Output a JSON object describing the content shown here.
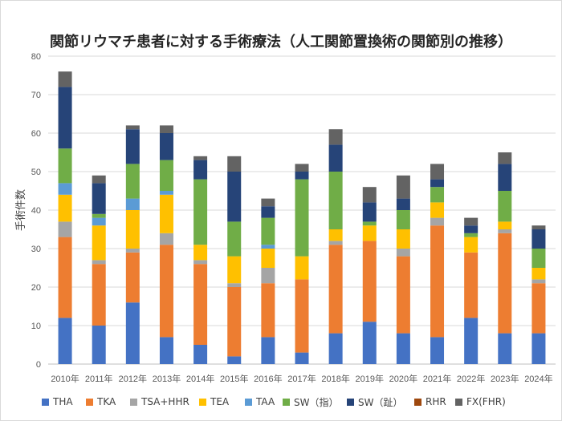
{
  "chart_data": {
    "type": "bar",
    "stacked": true,
    "title": "関節リウマチ患者に対する手術療法（人工関節置換術の関節別の推移）",
    "ylabel": "手術件数",
    "xlabel": "",
    "ylim": [
      0,
      80
    ],
    "yticks": [
      "0",
      "10",
      "20",
      "30",
      "40",
      "50",
      "60",
      "70",
      "80"
    ],
    "grid": true,
    "legend_position": "bottom",
    "categories": [
      "2010年",
      "2011年",
      "2012年",
      "2013年",
      "2014年",
      "2015年",
      "2016年",
      "2017年",
      "2018年",
      "2019年",
      "2020年",
      "2021年",
      "2022年",
      "2023年",
      "2024年"
    ],
    "series": [
      {
        "name": "THA",
        "color": "#4472C4",
        "values": [
          12,
          10,
          16,
          7,
          5,
          2,
          7,
          3,
          8,
          11,
          8,
          7,
          12,
          8,
          8
        ]
      },
      {
        "name": "TKA",
        "color": "#ED7D31",
        "values": [
          21,
          16,
          13,
          24,
          21,
          18,
          14,
          19,
          23,
          21,
          20,
          29,
          17,
          26,
          13
        ]
      },
      {
        "name": "TSA+HHR",
        "color": "#A5A5A5",
        "values": [
          4,
          1,
          1,
          3,
          1,
          1,
          4,
          0,
          1,
          0,
          2,
          2,
          0,
          1,
          1
        ]
      },
      {
        "name": "TEA",
        "color": "#FFC000",
        "values": [
          7,
          9,
          10,
          10,
          4,
          7,
          5,
          6,
          3,
          4,
          5,
          4,
          4,
          2,
          3
        ]
      },
      {
        "name": "TAA",
        "color": "#5B9BD5",
        "values": [
          3,
          2,
          3,
          1,
          0,
          0,
          1,
          0,
          0,
          0,
          0,
          0,
          0,
          0,
          0
        ]
      },
      {
        "name": "SW（指）",
        "color": "#70AD47",
        "values": [
          9,
          1,
          9,
          8,
          17,
          9,
          7,
          20,
          15,
          1,
          5,
          4,
          1,
          8,
          5
        ]
      },
      {
        "name": "SW（趾）",
        "color": "#264478",
        "values": [
          16,
          8,
          9,
          7,
          5,
          13,
          3,
          2,
          7,
          5,
          3,
          2,
          2,
          7,
          5
        ]
      },
      {
        "name": "RHR",
        "color": "#9E480E",
        "values": [
          0,
          0,
          0,
          0,
          0,
          0,
          0,
          0,
          0,
          0,
          0,
          0,
          0,
          0,
          0
        ]
      },
      {
        "name": "FX(FHR)",
        "color": "#636363",
        "values": [
          4,
          2,
          1,
          2,
          1,
          4,
          2,
          2,
          4,
          4,
          6,
          4,
          2,
          3,
          1
        ]
      }
    ]
  }
}
